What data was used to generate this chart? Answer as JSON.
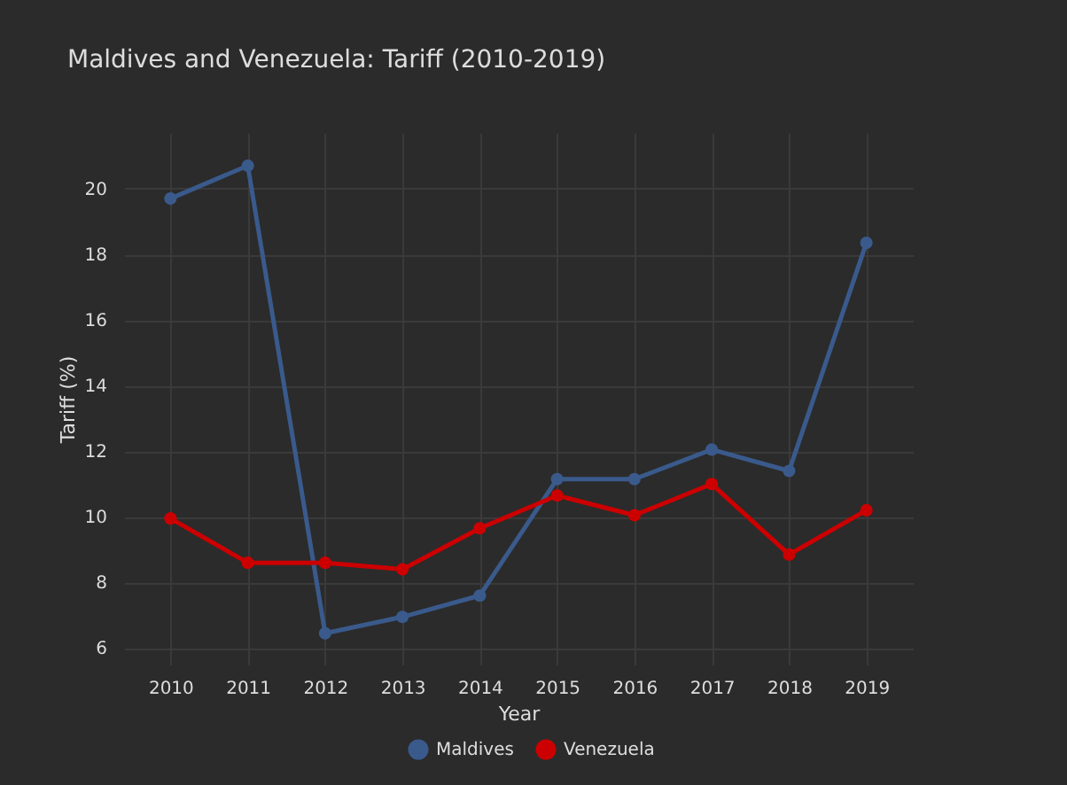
{
  "chart_data": {
    "type": "line",
    "title": "Maldives and Venezuela: Tariff (2010-2019)",
    "xlabel": "Year",
    "ylabel": "Tariff (%)",
    "categories": [
      "2010",
      "2011",
      "2012",
      "2013",
      "2014",
      "2015",
      "2016",
      "2017",
      "2018",
      "2019"
    ],
    "series": [
      {
        "name": "Maldives",
        "color": "#3a5a8c",
        "values": [
          19.7,
          20.7,
          6.45,
          6.95,
          7.6,
          11.15,
          11.15,
          12.05,
          11.4,
          18.35
        ]
      },
      {
        "name": "Venezuela",
        "color": "#cc0000",
        "values": [
          9.95,
          8.6,
          8.6,
          8.4,
          9.65,
          10.65,
          10.05,
          11.0,
          8.85,
          10.2
        ]
      }
    ],
    "ylim": [
      5.5,
      21.7
    ],
    "yticks": [
      6,
      8,
      10,
      12,
      14,
      16,
      18,
      20
    ],
    "grid": true,
    "legend": "bottom",
    "marker": "circle",
    "line_style": "solid"
  }
}
